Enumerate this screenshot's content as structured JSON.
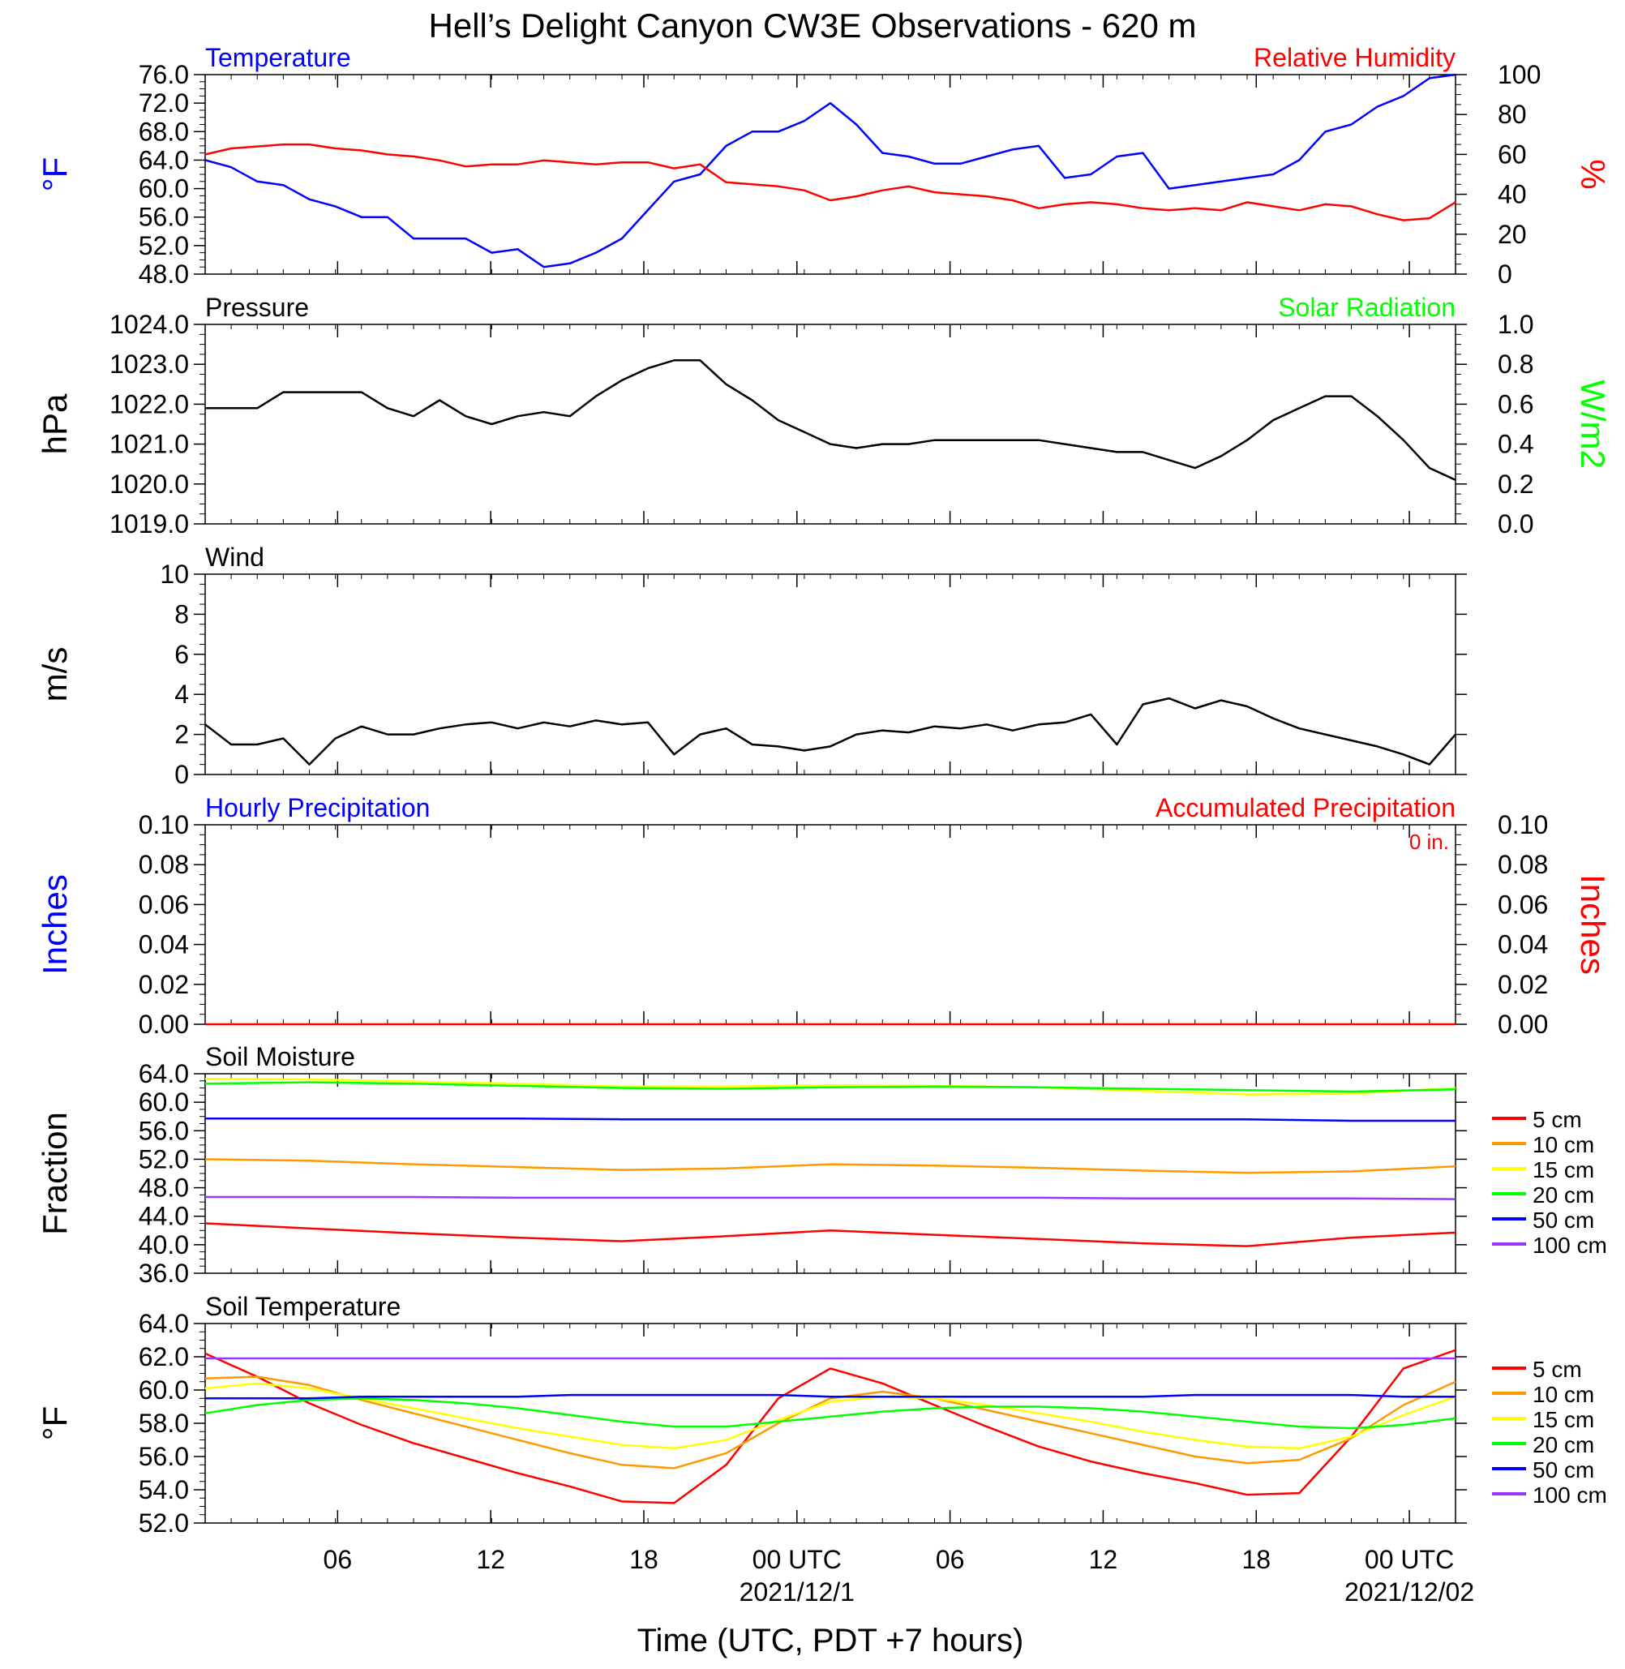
{
  "title": "Hell’s Delight Canyon CW3E Observations - 620 m",
  "x_axis": {
    "label": "Time (UTC, PDT +7 hours)",
    "ticks": [
      "06",
      "12",
      "18",
      "00 UTC",
      "06",
      "12",
      "18",
      "00 UTC"
    ],
    "dates": [
      "2021/12/1",
      "2021/12/02"
    ]
  },
  "colors": {
    "blue": "#0000ff",
    "red": "#ff0000",
    "black": "#000000",
    "green": "#00ff00",
    "orange": "#ff9900",
    "yellow": "#ffff00",
    "purple": "#9933ff"
  },
  "chart_data": [
    {
      "type": "line",
      "title_left": "Temperature",
      "title_right": "Relative Humidity",
      "ylabel_left": "°F",
      "ylabel_right": "%",
      "ylim_left": [
        48,
        76
      ],
      "ylim_right": [
        0,
        100
      ],
      "yticks_left": [
        "76.0",
        "72.0",
        "68.0",
        "64.0",
        "60.0",
        "56.0",
        "52.0",
        "48.0"
      ],
      "yticks_right": [
        "100",
        "80",
        "60",
        "40",
        "20",
        "0"
      ],
      "x_hours": [
        0,
        1,
        2,
        3,
        4,
        5,
        6,
        7,
        8,
        9,
        10,
        11,
        12,
        13,
        14,
        15,
        16,
        17,
        18,
        19,
        20,
        21,
        22,
        23,
        24,
        25,
        26,
        27,
        28,
        29,
        30,
        31,
        32,
        33,
        34,
        35,
        36,
        37,
        38,
        39,
        40,
        41,
        42,
        43,
        44,
        45,
        46,
        47,
        48
      ],
      "series": [
        {
          "axis": "left",
          "color": "blue",
          "values": [
            64,
            63,
            61,
            60.5,
            58.5,
            57.5,
            56,
            56,
            53,
            53,
            53,
            51,
            51.5,
            49,
            49.5,
            51,
            53,
            57,
            61,
            62,
            66,
            68,
            68,
            69.5,
            72,
            69,
            65,
            64.5,
            63.5,
            63.5,
            64.5,
            65.5,
            66,
            61.5,
            62,
            64.5,
            65,
            60,
            60.5,
            61,
            61.5,
            62,
            64,
            68,
            69,
            71.5,
            73,
            75.5,
            76
          ]
        },
        {
          "axis": "right",
          "color": "red",
          "values": [
            60,
            63,
            64,
            65,
            65,
            63,
            62,
            60,
            59,
            57,
            54,
            55,
            55,
            57,
            56,
            55,
            56,
            56,
            53,
            55,
            46,
            45,
            44,
            42,
            37,
            39,
            42,
            44,
            41,
            40,
            39,
            37,
            33,
            35,
            36,
            35,
            33,
            32,
            33,
            32,
            36,
            34,
            32,
            35,
            34,
            30,
            27,
            28,
            36
          ]
        }
      ]
    },
    {
      "type": "line",
      "title_left": "Pressure",
      "title_right": "Solar Radiation",
      "ylabel_left": "hPa",
      "ylabel_right": "W/m2",
      "ylim_left": [
        1019,
        1024
      ],
      "ylim_right": [
        0,
        1
      ],
      "yticks_left": [
        "1024.0",
        "1023.0",
        "1022.0",
        "1021.0",
        "1020.0",
        "1019.0"
      ],
      "yticks_right": [
        "1.0",
        "0.8",
        "0.6",
        "0.4",
        "0.2",
        "0.0"
      ],
      "x_hours": [
        0,
        1,
        2,
        3,
        4,
        5,
        6,
        7,
        8,
        9,
        10,
        11,
        12,
        13,
        14,
        15,
        16,
        17,
        18,
        19,
        20,
        21,
        22,
        23,
        24,
        25,
        26,
        27,
        28,
        29,
        30,
        31,
        32,
        33,
        34,
        35,
        36,
        37,
        38,
        39,
        40,
        41,
        42,
        43,
        44,
        45,
        46,
        47,
        48
      ],
      "series": [
        {
          "axis": "left",
          "color": "black",
          "values": [
            1021.9,
            1021.9,
            1021.9,
            1022.3,
            1022.3,
            1022.3,
            1022.3,
            1021.9,
            1021.7,
            1022.1,
            1021.7,
            1021.5,
            1021.7,
            1021.8,
            1021.7,
            1022.2,
            1022.6,
            1022.9,
            1023.1,
            1023.1,
            1022.5,
            1022.1,
            1021.6,
            1021.3,
            1021,
            1020.9,
            1021,
            1021,
            1021.1,
            1021.1,
            1021.1,
            1021.1,
            1021.1,
            1021,
            1020.9,
            1020.8,
            1020.8,
            1020.6,
            1020.4,
            1020.7,
            1021.1,
            1021.6,
            1021.9,
            1022.2,
            1022.2,
            1021.7,
            1021.1,
            1020.4,
            1020.1
          ]
        }
      ]
    },
    {
      "type": "line",
      "title_left": "Wind",
      "ylabel_left": "m/s",
      "ylim_left": [
        0,
        10
      ],
      "yticks_left": [
        "10",
        "8",
        "6",
        "4",
        "2",
        "0"
      ],
      "x_hours": [
        0,
        1,
        2,
        3,
        4,
        5,
        6,
        7,
        8,
        9,
        10,
        11,
        12,
        13,
        14,
        15,
        16,
        17,
        18,
        19,
        20,
        21,
        22,
        23,
        24,
        25,
        26,
        27,
        28,
        29,
        30,
        31,
        32,
        33,
        34,
        35,
        36,
        37,
        38,
        39,
        40,
        41,
        42,
        43,
        44,
        45,
        46,
        47,
        48
      ],
      "series": [
        {
          "axis": "left",
          "color": "black",
          "values": [
            2.5,
            1.5,
            1.5,
            1.8,
            0.5,
            1.8,
            2.4,
            2,
            2,
            2.3,
            2.5,
            2.6,
            2.3,
            2.6,
            2.4,
            2.7,
            2.5,
            2.6,
            1,
            2,
            2.3,
            1.5,
            1.4,
            1.2,
            1.4,
            2,
            2.2,
            2.1,
            2.4,
            2.3,
            2.5,
            2.2,
            2.5,
            2.6,
            3,
            1.5,
            3.5,
            3.8,
            3.3,
            3.7,
            3.4,
            2.8,
            2.3,
            2,
            1.7,
            1.4,
            1,
            0.5,
            2
          ]
        }
      ]
    },
    {
      "type": "bar",
      "title_left": "Hourly Precipitation",
      "title_right": "Accumulated Precipitation",
      "annotation": "0 in.",
      "ylabel_left": "Inches",
      "ylabel_right": "Inches",
      "ylim_left": [
        0,
        0.1
      ],
      "ylim_right": [
        0,
        0.1
      ],
      "yticks_left": [
        "0.10",
        "0.08",
        "0.06",
        "0.04",
        "0.02",
        "0.00"
      ],
      "yticks_right": [
        "0.10",
        "0.08",
        "0.06",
        "0.04",
        "0.02",
        "0.00"
      ],
      "x_hours": [
        0,
        48
      ],
      "series": [
        {
          "axis": "left",
          "color": "red",
          "values": [
            0,
            0
          ]
        }
      ]
    },
    {
      "type": "line",
      "title_left": "Soil Moisture",
      "ylabel_left": "Fraction",
      "ylim_left": [
        36,
        64
      ],
      "yticks_left": [
        "64.0",
        "60.0",
        "56.0",
        "52.0",
        "48.0",
        "44.0",
        "40.0",
        "36.0"
      ],
      "legend": [
        "5 cm",
        "10 cm",
        "15 cm",
        "20 cm",
        "50 cm",
        "100 cm"
      ],
      "x_hours": [
        0,
        4,
        8,
        12,
        16,
        20,
        24,
        28,
        32,
        36,
        40,
        44,
        48
      ],
      "series": [
        {
          "name": "5 cm",
          "color": "red",
          "values": [
            43,
            42.3,
            41.6,
            41,
            40.5,
            41.2,
            42,
            41.4,
            40.8,
            40.2,
            39.8,
            41,
            41.7
          ]
        },
        {
          "name": "10 cm",
          "color": "orange",
          "values": [
            52,
            51.8,
            51.3,
            50.9,
            50.5,
            50.7,
            51.3,
            51.1,
            50.8,
            50.4,
            50.1,
            50.3,
            51
          ]
        },
        {
          "name": "15 cm",
          "color": "yellow",
          "values": [
            63.3,
            63.2,
            62.9,
            62.6,
            62.2,
            62.2,
            62.4,
            62.3,
            62.1,
            61.6,
            61.1,
            61.2,
            62
          ]
        },
        {
          "name": "20 cm",
          "color": "green",
          "values": [
            62.6,
            62.8,
            62.6,
            62.3,
            62,
            61.9,
            62.1,
            62.2,
            62.1,
            61.9,
            61.7,
            61.5,
            61.8
          ]
        },
        {
          "name": "50 cm",
          "color": "blue",
          "values": [
            57.7,
            57.7,
            57.7,
            57.7,
            57.6,
            57.6,
            57.6,
            57.6,
            57.6,
            57.6,
            57.6,
            57.4,
            57.4
          ]
        },
        {
          "name": "100 cm",
          "color": "purple",
          "values": [
            46.7,
            46.7,
            46.7,
            46.6,
            46.6,
            46.6,
            46.6,
            46.6,
            46.6,
            46.5,
            46.5,
            46.5,
            46.4
          ]
        }
      ]
    },
    {
      "type": "line",
      "title_left": "Soil Temperature",
      "ylabel_left": "°F",
      "ylim_left": [
        52,
        64
      ],
      "yticks_left": [
        "64.0",
        "62.0",
        "60.0",
        "58.0",
        "56.0",
        "54.0",
        "52.0"
      ],
      "legend": [
        "5 cm",
        "10 cm",
        "15 cm",
        "20 cm",
        "50 cm",
        "100 cm"
      ],
      "x_hours": [
        0,
        2,
        4,
        6,
        8,
        10,
        12,
        14,
        16,
        18,
        20,
        22,
        24,
        26,
        28,
        30,
        32,
        34,
        36,
        38,
        40,
        42,
        44,
        46,
        48
      ],
      "series": [
        {
          "name": "5 cm",
          "color": "red",
          "values": [
            62.2,
            60.8,
            59.2,
            57.9,
            56.8,
            55.9,
            55,
            54.2,
            53.3,
            53.2,
            55.5,
            59.5,
            61.3,
            60.4,
            59.1,
            57.8,
            56.6,
            55.7,
            55,
            54.4,
            53.7,
            53.8,
            57.2,
            61.3,
            62.4
          ]
        },
        {
          "name": "10 cm",
          "color": "orange",
          "values": [
            60.7,
            60.8,
            60.3,
            59.4,
            58.6,
            57.8,
            57,
            56.2,
            55.5,
            55.3,
            56.2,
            58,
            59.5,
            59.9,
            59.5,
            58.8,
            58.1,
            57.4,
            56.7,
            56,
            55.6,
            55.8,
            57.1,
            59.1,
            60.5
          ]
        },
        {
          "name": "15 cm",
          "color": "yellow",
          "values": [
            60.1,
            60.4,
            60.1,
            59.5,
            58.9,
            58.3,
            57.7,
            57.2,
            56.7,
            56.5,
            57,
            58.2,
            59.3,
            59.6,
            59.5,
            59.1,
            58.6,
            58.1,
            57.5,
            57,
            56.6,
            56.5,
            57.2,
            58.5,
            59.6
          ]
        },
        {
          "name": "20 cm",
          "color": "green",
          "values": [
            58.6,
            59.1,
            59.4,
            59.5,
            59.4,
            59.2,
            58.9,
            58.5,
            58.1,
            57.8,
            57.8,
            58.1,
            58.4,
            58.7,
            58.9,
            59,
            59,
            58.9,
            58.7,
            58.4,
            58.1,
            57.8,
            57.7,
            57.9,
            58.3
          ]
        },
        {
          "name": "50 cm",
          "color": "blue",
          "values": [
            59.5,
            59.5,
            59.5,
            59.6,
            59.6,
            59.6,
            59.6,
            59.7,
            59.7,
            59.7,
            59.7,
            59.7,
            59.6,
            59.6,
            59.6,
            59.6,
            59.6,
            59.6,
            59.6,
            59.7,
            59.7,
            59.7,
            59.7,
            59.6,
            59.6
          ]
        },
        {
          "name": "100 cm",
          "color": "purple",
          "values": [
            61.9,
            61.9,
            61.9,
            61.9,
            61.9,
            61.9,
            61.9,
            61.9,
            61.9,
            61.9,
            61.9,
            61.9,
            61.9,
            61.9,
            61.9,
            61.9,
            61.9,
            61.9,
            61.9,
            61.9,
            61.9,
            61.9,
            61.9,
            61.9,
            61.9
          ]
        }
      ]
    }
  ]
}
